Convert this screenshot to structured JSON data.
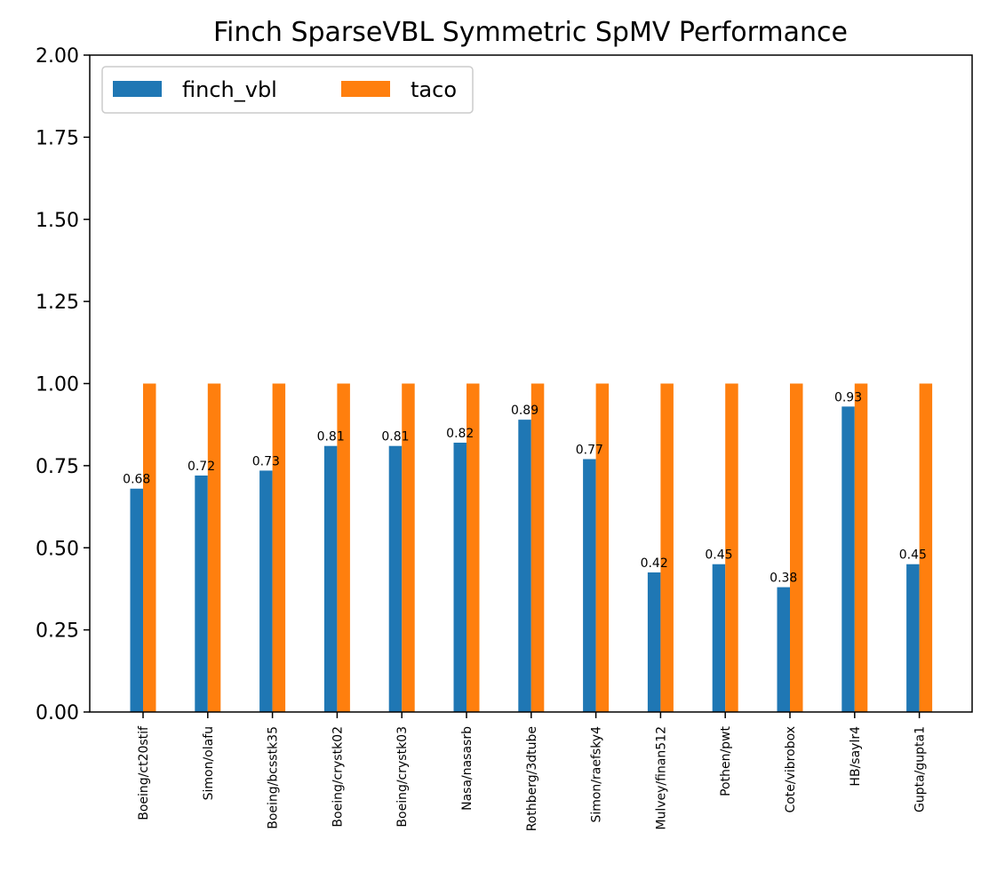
{
  "chart_data": {
    "type": "bar",
    "title": "Finch SparseVBL Symmetric SpMV Performance",
    "xlabel": "",
    "ylabel": "",
    "ylim": [
      0,
      2.0
    ],
    "yticks": [
      "0.00",
      "0.25",
      "0.50",
      "0.75",
      "1.00",
      "1.25",
      "1.50",
      "1.75",
      "2.00"
    ],
    "grid": false,
    "legend_position": "top-left",
    "categories": [
      "Boeing/ct20stif",
      "Simon/olafu",
      "Boeing/bcsstk35",
      "Boeing/crystk02",
      "Boeing/crystk03",
      "Nasa/nasasrb",
      "Rothberg/3dtube",
      "Simon/raefsky4",
      "Mulvey/finan512",
      "Pothen/pwt",
      "Cote/vibrobox",
      "HB/saylr4",
      "Gupta/gupta1"
    ],
    "series": [
      {
        "name": "finch_vbl",
        "color": "#1f77b4",
        "values": [
          0.68,
          0.72,
          0.735,
          0.81,
          0.81,
          0.82,
          0.89,
          0.77,
          0.425,
          0.45,
          0.38,
          0.93,
          0.45
        ],
        "data_labels": [
          "0.68",
          "0.72",
          "0.73",
          "0.81",
          "0.81",
          "0.82",
          "0.89",
          "0.77",
          "0.42",
          "0.45",
          "0.38",
          "0.93",
          "0.45"
        ]
      },
      {
        "name": "taco",
        "color": "#ff7f0e",
        "values": [
          1.0,
          1.0,
          1.0,
          1.0,
          1.0,
          1.0,
          1.0,
          1.0,
          1.0,
          1.0,
          1.0,
          1.0,
          1.0
        ]
      }
    ]
  }
}
